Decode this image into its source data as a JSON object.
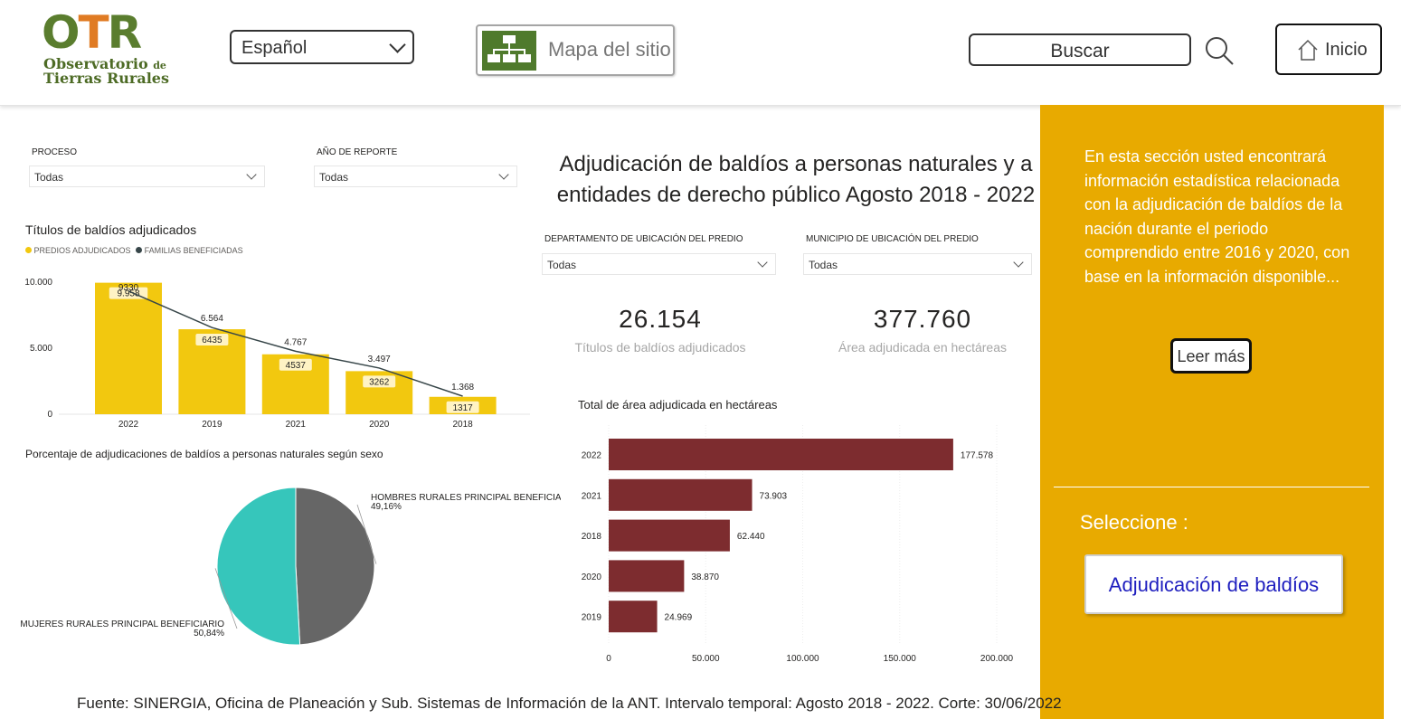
{
  "header": {
    "logo": {
      "letters": [
        "O",
        "T",
        "R"
      ],
      "line1": "Observatorio",
      "line1_small": "de",
      "line2": "Tierras Rurales"
    },
    "language": {
      "selected": "Español"
    },
    "sitemap": {
      "label": "Mapa del sitio",
      "icon": "sitemap-icon"
    },
    "search": {
      "label": "Buscar",
      "icon": "search-icon"
    },
    "home": {
      "label": "Inicio",
      "icon": "home-icon"
    }
  },
  "filters": {
    "proceso": {
      "title": "PROCESO",
      "value": "Todas"
    },
    "anio": {
      "title": "AÑO DE REPORTE",
      "value": "Todas"
    },
    "departamento": {
      "title": "DEPARTAMENTO DE UBICACIÓN DEL PREDIO",
      "value": "Todas"
    },
    "municipio": {
      "title": "MUNICIPIO DE UBICACIÓN DEL PREDIO",
      "value": "Todas"
    }
  },
  "main_title": {
    "line1": "Adjudicación de baldíos a personas naturales y a",
    "line2": "entidades de derecho público  Agosto 2018 - 2022"
  },
  "kpis": [
    {
      "value": "26.154",
      "label": "Títulos de baldíos adjudicados"
    },
    {
      "value": "377.760",
      "label": "Área adjudicada en hectáreas"
    }
  ],
  "chart_data": [
    {
      "type": "bar",
      "title": "Títulos de baldíos adjudicados",
      "categories": [
        "2022",
        "2019",
        "2021",
        "2020",
        "2018"
      ],
      "series": [
        {
          "name": "PREDIOS ADJUDICADOS",
          "type": "bar",
          "values": [
            9958,
            6435,
            4537,
            3262,
            1317
          ],
          "labels": [
            "9.958",
            "6435",
            "4537",
            "3262",
            "1317"
          ]
        },
        {
          "name": "FAMILIAS BENEFICIADAS",
          "type": "line",
          "values": [
            9330,
            6564,
            4767,
            3497,
            1368
          ],
          "labels": [
            "9330",
            "6.564",
            "4.767",
            "3.497",
            "1.368"
          ]
        }
      ],
      "yticks": [
        "0",
        "5.000",
        "10.000"
      ],
      "ylim": [
        0,
        10000
      ],
      "legend": "top-left",
      "colors": {
        "bar": "#f2c80f",
        "line": "#374649"
      }
    },
    {
      "type": "pie",
      "title": "Porcentaje de adjudicaciones de baldíos a personas naturales según sexo",
      "slices": [
        {
          "label": "HOMBRES RURALES PRINCIPAL BENEFICIARIO",
          "value": 49.16,
          "pct_label": "49,16%",
          "color": "#666666"
        },
        {
          "label": "MUJERES RURALES PRINCIPAL BENEFICIARIO",
          "value": 50.84,
          "pct_label": "50,84%",
          "color": "#36c6bb"
        }
      ]
    },
    {
      "type": "bar",
      "orientation": "horizontal",
      "title": "Total de área adjudicada en hectáreas",
      "categories": [
        "2022",
        "2021",
        "2018",
        "2020",
        "2019"
      ],
      "values": [
        177578,
        73903,
        62440,
        38870,
        24969
      ],
      "labels": [
        "177.578",
        "73.903",
        "62.440",
        "38.870",
        "24.969"
      ],
      "xticks": [
        "0",
        "50.000",
        "100.000",
        "150.000",
        "200.000"
      ],
      "xlim": [
        0,
        200000
      ],
      "color": "#7d2c2f"
    }
  ],
  "side_panel": {
    "description": "En esta sección usted encontrará información estadística relacionada con la adjudicación de baldíos de la nación durante el periodo comprendido entre 2016 y 2020, con base en la información disponible...",
    "read_more": "Leer más",
    "select_label": "Seleccione :",
    "option_button": "Adjudicación de baldíos",
    "bg_color": "#e8aa00"
  },
  "footer": "Fuente: SINERGIA, Oficina de Planeación y Sub. Sistemas de Información de la ANT. Intervalo temporal: Agosto 2018 - 2022. Corte: 30/06/2022"
}
